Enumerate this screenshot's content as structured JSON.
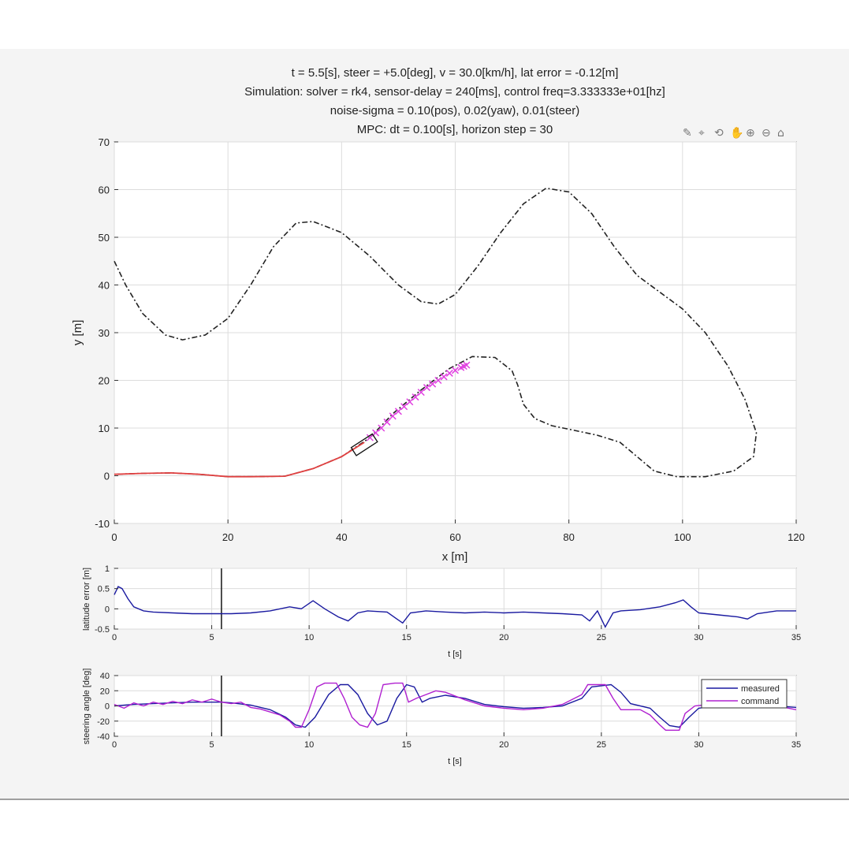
{
  "figure": {
    "title_lines": [
      "t = 5.5[s], steer = +5.0[deg], v = 30.0[km/h], lat error = -0.12[m]",
      "Simulation: solver = rk4, sensor-delay = 240[ms], control freq=3.333333e+01[hz]",
      "noise-sigma = 0.10(pos), 0.02(yaw), 0.01(steer)",
      "MPC: dt = 0.100[s], horizon step = 30"
    ],
    "toolbar": [
      "brush-icon",
      "datatip-icon",
      "rotate-icon",
      "pan-icon",
      "zoom-in-icon",
      "zoom-out-icon",
      "home-icon"
    ],
    "colors": {
      "reference": "#222222",
      "trajectory": "#e04040",
      "prediction": "#e040e0",
      "measured": "#1a1aa0",
      "command": "#b020d0",
      "cursor": "#222222"
    }
  },
  "chart_data": [
    {
      "type": "line",
      "id": "path-plot",
      "xlabel": "x [m]",
      "ylabel": "y [m]",
      "xlim": [
        0,
        120
      ],
      "ylim": [
        -10,
        70
      ],
      "xticks": [
        "0",
        "20",
        "40",
        "60",
        "80",
        "100",
        "120"
      ],
      "yticks": [
        "-10",
        "0",
        "10",
        "20",
        "30",
        "40",
        "50",
        "60",
        "70"
      ],
      "grid": true,
      "series": [
        {
          "style": "dashdot",
          "points": [
            [
              0,
              45
            ],
            [
              2,
              40
            ],
            [
              5,
              34
            ],
            [
              9,
              29.5
            ],
            [
              12,
              28.5
            ],
            [
              16,
              29.5
            ],
            [
              20,
              33
            ],
            [
              24,
              40
            ],
            [
              28,
              48
            ],
            [
              32,
              53
            ],
            [
              35,
              53.3
            ],
            [
              40,
              51
            ],
            [
              45,
              46
            ],
            [
              50,
              40
            ],
            [
              54,
              36.5
            ],
            [
              57,
              36
            ],
            [
              60,
              38
            ],
            [
              64,
              44
            ],
            [
              68,
              51
            ],
            [
              72,
              57
            ],
            [
              76,
              60.3
            ],
            [
              80,
              59.5
            ],
            [
              84,
              55
            ],
            [
              88,
              48
            ],
            [
              92,
              42
            ],
            [
              96,
              38.5
            ],
            [
              100,
              35
            ],
            [
              104,
              30
            ],
            [
              108,
              23
            ],
            [
              111,
              16
            ],
            [
              113,
              9
            ],
            [
              112.5,
              4
            ],
            [
              109,
              1
            ],
            [
              104,
              -0.2
            ],
            [
              99,
              -0.2
            ],
            [
              95,
              1
            ],
            [
              92,
              4
            ],
            [
              89,
              7
            ],
            [
              85,
              8.5
            ],
            [
              81,
              9.5
            ],
            [
              77,
              10.5
            ],
            [
              74,
              12
            ],
            [
              72,
              15
            ],
            [
              71,
              19
            ],
            [
              70,
              22
            ],
            [
              67,
              24.8
            ],
            [
              63,
              25
            ],
            [
              59,
              22.5
            ],
            [
              54,
              18
            ],
            [
              49,
              13
            ],
            [
              45,
              8
            ],
            [
              40,
              4
            ],
            [
              35,
              1.5
            ],
            [
              30,
              -0.1
            ],
            [
              24,
              -0.2
            ],
            [
              20,
              -0.2
            ],
            [
              15,
              0.3
            ],
            [
              10,
              0.6
            ],
            [
              5,
              0.5
            ],
            [
              0,
              0.3
            ]
          ]
        },
        {
          "style": "solid",
          "points": [
            [
              0,
              0.3
            ],
            [
              5,
              0.5
            ],
            [
              10,
              0.6
            ],
            [
              15,
              0.3
            ],
            [
              20,
              -0.2
            ],
            [
              24,
              -0.2
            ],
            [
              30,
              -0.1
            ],
            [
              35,
              1.5
            ],
            [
              40,
              4
            ],
            [
              44,
              7
            ]
          ]
        },
        {
          "style": "marker",
          "points": [
            [
              45,
              8
            ],
            [
              47,
              10
            ],
            [
              49,
              12.5
            ],
            [
              51,
              14.5
            ],
            [
              53,
              16.5
            ],
            [
              55,
              18.5
            ],
            [
              57,
              20
            ],
            [
              59,
              21.5
            ],
            [
              61,
              22.7
            ],
            [
              62,
              23.2
            ]
          ]
        }
      ],
      "vehicle": {
        "x": 44,
        "y": 6.5,
        "heading_deg": 33
      }
    },
    {
      "type": "line",
      "id": "lat-error-plot",
      "xlabel": "t [s]",
      "ylabel": "latitude error [m]",
      "xlim": [
        0,
        35
      ],
      "ylim": [
        -0.5,
        1
      ],
      "xticks": [
        "0",
        "5",
        "10",
        "15",
        "20",
        "25",
        "30",
        "35"
      ],
      "yticks": [
        "-0.5",
        "0",
        "0.5",
        "1"
      ],
      "grid": true,
      "cursor_t": 5.5,
      "series": [
        {
          "name": "lat error",
          "points": [
            [
              0,
              0.35
            ],
            [
              0.2,
              0.55
            ],
            [
              0.4,
              0.5
            ],
            [
              0.7,
              0.25
            ],
            [
              1,
              0.05
            ],
            [
              1.5,
              -0.05
            ],
            [
              2,
              -0.08
            ],
            [
              3,
              -0.1
            ],
            [
              4,
              -0.12
            ],
            [
              5,
              -0.12
            ],
            [
              6,
              -0.12
            ],
            [
              7,
              -0.1
            ],
            [
              8,
              -0.05
            ],
            [
              9,
              0.05
            ],
            [
              9.6,
              0.0
            ],
            [
              10.2,
              0.2
            ],
            [
              10.8,
              0.0
            ],
            [
              11.5,
              -0.2
            ],
            [
              12,
              -0.3
            ],
            [
              12.5,
              -0.1
            ],
            [
              13,
              -0.05
            ],
            [
              14,
              -0.08
            ],
            [
              14.5,
              -0.25
            ],
            [
              14.8,
              -0.35
            ],
            [
              15.2,
              -0.1
            ],
            [
              16,
              -0.05
            ],
            [
              17,
              -0.08
            ],
            [
              18,
              -0.1
            ],
            [
              19,
              -0.08
            ],
            [
              20,
              -0.1
            ],
            [
              21,
              -0.08
            ],
            [
              22,
              -0.1
            ],
            [
              23,
              -0.12
            ],
            [
              24,
              -0.15
            ],
            [
              24.4,
              -0.3
            ],
            [
              24.8,
              -0.05
            ],
            [
              25.2,
              -0.45
            ],
            [
              25.6,
              -0.1
            ],
            [
              26,
              -0.05
            ],
            [
              27,
              -0.02
            ],
            [
              28,
              0.05
            ],
            [
              28.8,
              0.15
            ],
            [
              29.2,
              0.22
            ],
            [
              29.6,
              0.05
            ],
            [
              30,
              -0.1
            ],
            [
              31,
              -0.15
            ],
            [
              32,
              -0.2
            ],
            [
              32.5,
              -0.25
            ],
            [
              33,
              -0.12
            ],
            [
              34,
              -0.05
            ],
            [
              35,
              -0.05
            ]
          ]
        }
      ]
    },
    {
      "type": "line",
      "id": "steering-plot",
      "xlabel": "t [s]",
      "ylabel": "steering angle [deg]",
      "xlim": [
        0,
        35
      ],
      "ylim": [
        -40,
        40
      ],
      "xticks": [
        "0",
        "5",
        "10",
        "15",
        "20",
        "25",
        "30",
        "35"
      ],
      "yticks": [
        "-40",
        "-20",
        "0",
        "20",
        "40"
      ],
      "grid": true,
      "cursor_t": 5.5,
      "legend": {
        "position": "top-right",
        "entries": [
          "measured",
          "command"
        ]
      },
      "series": [
        {
          "name": "measured",
          "points": [
            [
              0,
              0
            ],
            [
              1,
              2
            ],
            [
              2,
              3
            ],
            [
              3,
              4
            ],
            [
              4,
              5
            ],
            [
              5,
              5
            ],
            [
              5.5,
              5
            ],
            [
              6,
              4
            ],
            [
              7,
              1
            ],
            [
              8,
              -5
            ],
            [
              8.8,
              -15
            ],
            [
              9.3,
              -25
            ],
            [
              9.8,
              -28
            ],
            [
              10.3,
              -15
            ],
            [
              11,
              15
            ],
            [
              11.6,
              28
            ],
            [
              12,
              28
            ],
            [
              12.5,
              15
            ],
            [
              13,
              -10
            ],
            [
              13.5,
              -25
            ],
            [
              14,
              -20
            ],
            [
              14.5,
              10
            ],
            [
              15,
              28
            ],
            [
              15.4,
              25
            ],
            [
              15.8,
              5
            ],
            [
              16.2,
              10
            ],
            [
              17,
              14
            ],
            [
              18,
              10
            ],
            [
              19,
              2
            ],
            [
              20,
              -1
            ],
            [
              21,
              -3
            ],
            [
              22,
              -2
            ],
            [
              23,
              0
            ],
            [
              24,
              10
            ],
            [
              24.5,
              25
            ],
            [
              25.5,
              28
            ],
            [
              26,
              18
            ],
            [
              26.5,
              3
            ],
            [
              27.5,
              -3
            ],
            [
              28,
              -15
            ],
            [
              28.5,
              -26
            ],
            [
              29,
              -28
            ],
            [
              29.5,
              -15
            ],
            [
              30,
              -3
            ],
            [
              31,
              0
            ],
            [
              32,
              2
            ],
            [
              33,
              0
            ],
            [
              34,
              0
            ],
            [
              35,
              -2
            ]
          ]
        },
        {
          "name": "command",
          "points": [
            [
              0,
              2
            ],
            [
              0.5,
              -3
            ],
            [
              1,
              4
            ],
            [
              1.5,
              0
            ],
            [
              2,
              5
            ],
            [
              2.5,
              2
            ],
            [
              3,
              6
            ],
            [
              3.5,
              3
            ],
            [
              4,
              8
            ],
            [
              4.5,
              5
            ],
            [
              5,
              9
            ],
            [
              5.5,
              5
            ],
            [
              6,
              3
            ],
            [
              6.5,
              5
            ],
            [
              7,
              -2
            ],
            [
              7.5,
              -4
            ],
            [
              8,
              -8
            ],
            [
              8.5,
              -12
            ],
            [
              9,
              -20
            ],
            [
              9.3,
              -28
            ],
            [
              9.6,
              -28
            ],
            [
              10,
              -5
            ],
            [
              10.4,
              25
            ],
            [
              10.8,
              30
            ],
            [
              11.4,
              30
            ],
            [
              11.8,
              10
            ],
            [
              12.2,
              -15
            ],
            [
              12.6,
              -25
            ],
            [
              13,
              -28
            ],
            [
              13.4,
              -10
            ],
            [
              13.8,
              28
            ],
            [
              14.4,
              30
            ],
            [
              14.8,
              30
            ],
            [
              15.1,
              5
            ],
            [
              15.5,
              10
            ],
            [
              16,
              15
            ],
            [
              16.5,
              20
            ],
            [
              17,
              18
            ],
            [
              18,
              8
            ],
            [
              19,
              0
            ],
            [
              20,
              -3
            ],
            [
              21,
              -5
            ],
            [
              22,
              -3
            ],
            [
              23,
              2
            ],
            [
              24,
              15
            ],
            [
              24.3,
              28
            ],
            [
              25.2,
              28
            ],
            [
              25.6,
              10
            ],
            [
              26,
              -5
            ],
            [
              27,
              -5
            ],
            [
              27.5,
              -12
            ],
            [
              28,
              -25
            ],
            [
              28.3,
              -32
            ],
            [
              29,
              -32
            ],
            [
              29.3,
              -10
            ],
            [
              29.8,
              0
            ],
            [
              30.5,
              2
            ],
            [
              31,
              -1
            ],
            [
              32,
              2
            ],
            [
              33,
              -2
            ],
            [
              34,
              0
            ],
            [
              35,
              -5
            ]
          ]
        }
      ]
    }
  ]
}
